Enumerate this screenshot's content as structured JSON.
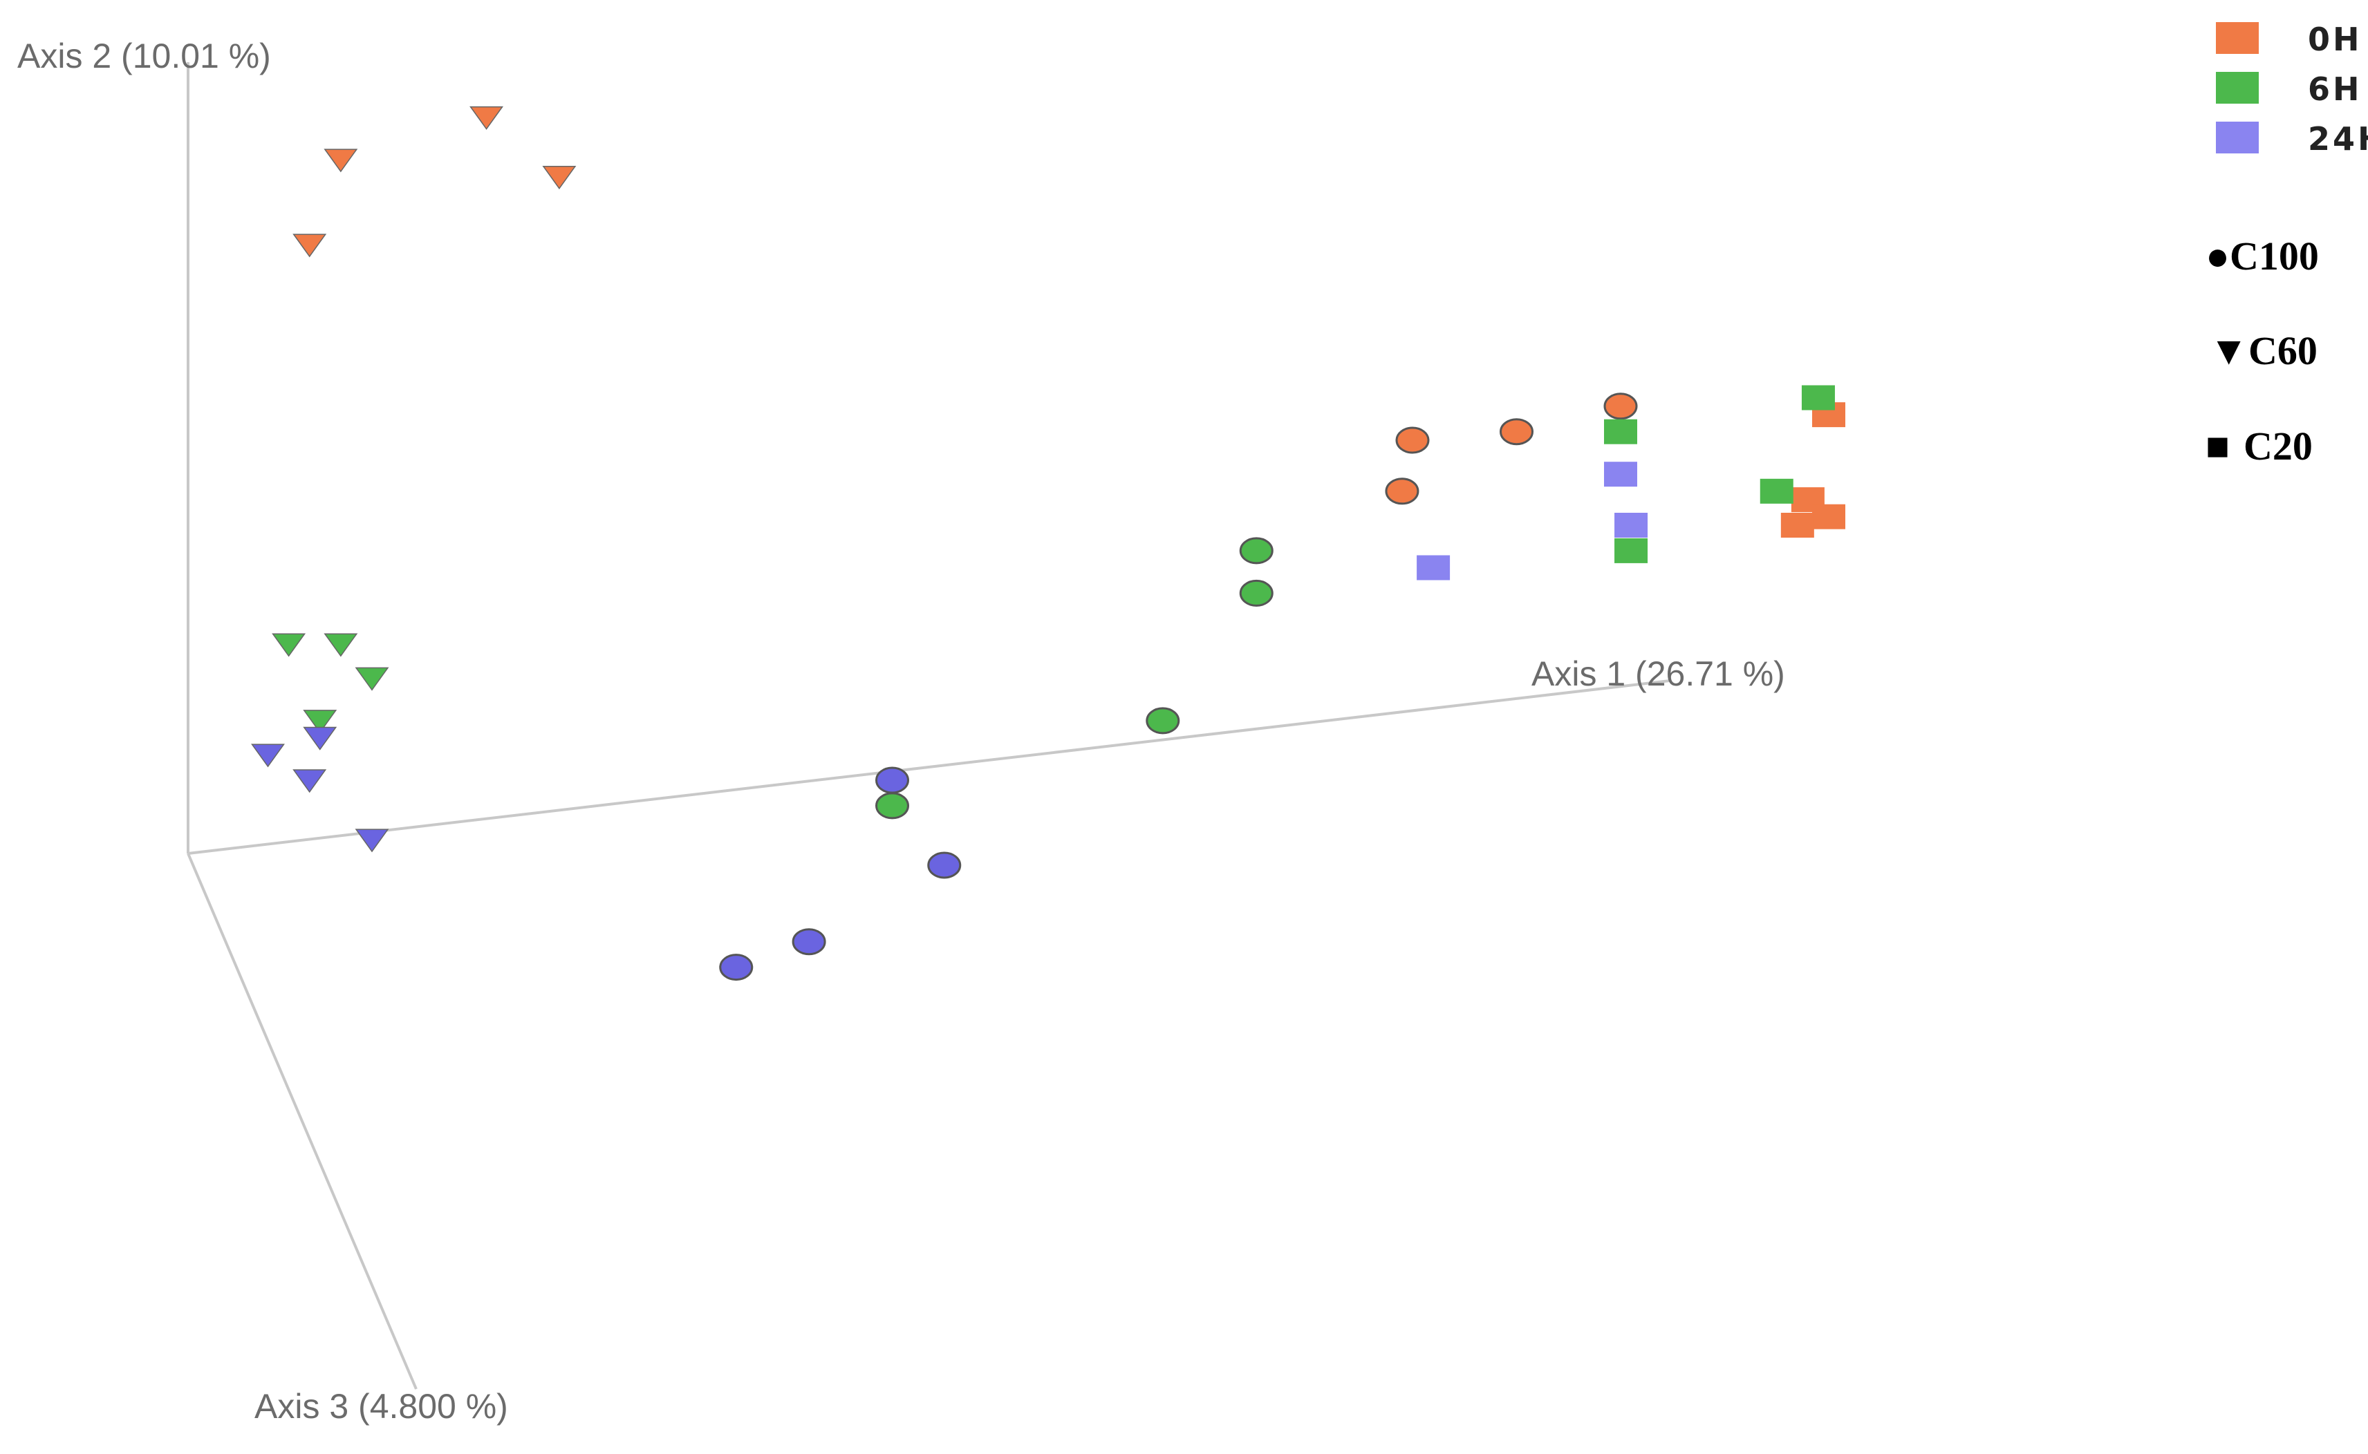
{
  "chart_data": {
    "type": "scatter",
    "projection": "3d-pcoa",
    "axes": {
      "x": {
        "label": "Axis 1 (26.71 %)"
      },
      "y": {
        "label": "Axis 2 (10.01 %)"
      },
      "z": {
        "label": "Axis 3 (4.800 %)"
      }
    },
    "legend": {
      "placement": "top-right",
      "colors": [
        {
          "label": "0H",
          "color": "#f07a45"
        },
        {
          "label": "6H",
          "color": "#4cb84c"
        },
        {
          "label": "24H",
          "color": "#8a84f0"
        }
      ],
      "shapes": [
        {
          "label": "C100",
          "glyph": "●",
          "marker": "circle"
        },
        {
          "label": "C60",
          "glyph": "▼",
          "marker": "triangle"
        },
        {
          "label": "C20",
          "glyph": "■",
          "marker": "square"
        }
      ]
    },
    "grid": false,
    "series": [
      {
        "group": "C100",
        "time": "0H",
        "marker": "circle",
        "color": "#f07a45",
        "points": [
          [
            0.6,
            0.5
          ],
          [
            0.7,
            0.51
          ],
          [
            0.8,
            0.54
          ],
          [
            0.59,
            0.44
          ]
        ]
      },
      {
        "group": "C100",
        "time": "6H",
        "marker": "circle",
        "color": "#4cb84c",
        "points": [
          [
            0.45,
            0.37
          ],
          [
            0.45,
            0.32
          ],
          [
            0.36,
            0.17
          ],
          [
            0.1,
            0.07
          ]
        ]
      },
      {
        "group": "C100",
        "time": "24H",
        "marker": "circle",
        "color": "#6a64e0",
        "points": [
          [
            0.1,
            0.1
          ],
          [
            0.15,
            0.0
          ],
          [
            0.02,
            -0.09
          ],
          [
            -0.05,
            -0.12
          ]
        ]
      },
      {
        "group": "C60",
        "time": "0H",
        "marker": "triangle",
        "color": "#f07a45",
        "points": [
          [
            -0.29,
            0.88
          ],
          [
            -0.43,
            0.83
          ],
          [
            -0.22,
            0.81
          ],
          [
            -0.46,
            0.73
          ]
        ]
      },
      {
        "group": "C60",
        "time": "6H",
        "marker": "triangle",
        "color": "#4cb84c",
        "points": [
          [
            -0.48,
            0.26
          ],
          [
            -0.43,
            0.26
          ],
          [
            -0.4,
            0.22
          ],
          [
            -0.45,
            0.17
          ]
        ]
      },
      {
        "group": "C60",
        "time": "24H",
        "marker": "triangle",
        "color": "#6a64e0",
        "points": [
          [
            -0.45,
            0.15
          ],
          [
            -0.5,
            0.13
          ],
          [
            -0.46,
            0.1
          ],
          [
            -0.4,
            0.03
          ]
        ]
      },
      {
        "group": "C20",
        "time": "0H",
        "marker": "square",
        "color": "#f07a45",
        "points": [
          [
            1.0,
            0.53
          ],
          [
            0.98,
            0.43
          ],
          [
            1.0,
            0.41
          ],
          [
            0.97,
            0.4
          ]
        ]
      },
      {
        "group": "C20",
        "time": "6H",
        "marker": "square",
        "color": "#4cb84c",
        "points": [
          [
            0.99,
            0.55
          ],
          [
            0.8,
            0.51
          ],
          [
            0.95,
            0.44
          ],
          [
            0.81,
            0.37
          ]
        ]
      },
      {
        "group": "C20",
        "time": "24H",
        "marker": "square",
        "color": "#8a84f0",
        "points": [
          [
            0.8,
            0.46
          ],
          [
            0.81,
            0.4
          ],
          [
            0.62,
            0.35
          ]
        ]
      }
    ]
  }
}
